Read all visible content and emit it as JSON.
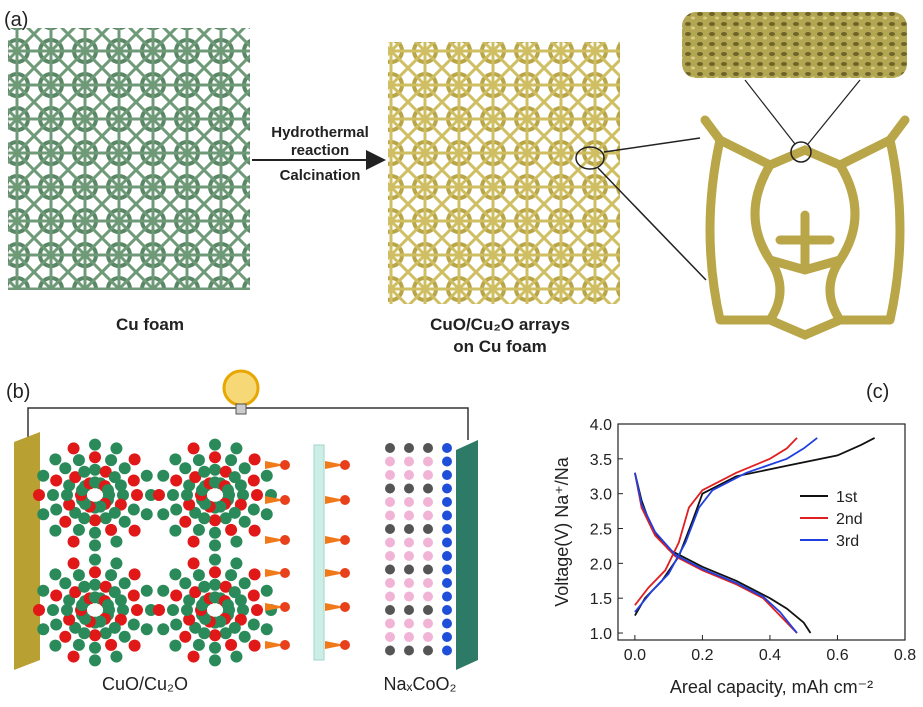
{
  "panel_a": {
    "label": "(a)",
    "arrow_text": [
      "Hydrothermal",
      "reaction",
      "Calcination"
    ],
    "left_caption": "Cu foam",
    "right_caption": [
      "CuO/Cu₂O arrays",
      "on Cu foam"
    ]
  },
  "panel_b": {
    "label": "(b)",
    "anode_label": "CuO/Cu₂O",
    "cathode_label": "NaₓCoO₂"
  },
  "panel_c": {
    "label": "(c)"
  },
  "chart_data": {
    "type": "line",
    "xlabel": "Areal capacity, mAh cm⁻²",
    "ylabel": "Voltage(V)  Na⁺/Na",
    "xlim": [
      -0.05,
      0.8
    ],
    "ylim": [
      0.9,
      4.0
    ],
    "xticks": [
      {
        "value": 0,
        "label": "0.0"
      },
      0.2,
      0.4,
      0.6,
      0.8
    ],
    "yticks": [
      {
        "value": 1,
        "label": "1.0"
      },
      1.5,
      {
        "value": 2,
        "label": "2.0"
      },
      2.5,
      {
        "value": 3,
        "label": "3.0"
      },
      3.5,
      {
        "value": 4,
        "label": "4.0"
      }
    ],
    "legend": "right",
    "series": [
      {
        "name": "1st",
        "color": "#111111",
        "x": [
          0,
          0.02,
          0.05,
          0.1,
          0.2,
          0.3,
          0.4,
          0.45,
          0.5,
          0.52,
          null,
          0,
          0.03,
          0.08,
          0.13,
          0.17,
          0.2,
          0.3,
          0.45,
          0.6,
          0.67,
          0.71
        ],
        "values": [
          3.3,
          2.9,
          2.5,
          2.2,
          1.95,
          1.75,
          1.5,
          1.35,
          1.15,
          1.0,
          null,
          1.25,
          1.5,
          1.75,
          2.1,
          2.6,
          3.0,
          3.25,
          3.4,
          3.55,
          3.7,
          3.8
        ]
      },
      {
        "name": "2nd",
        "color": "#e02020",
        "x": [
          0,
          0.02,
          0.06,
          0.12,
          0.2,
          0.3,
          0.38,
          0.42,
          0.46,
          0.48,
          null,
          0,
          0.04,
          0.09,
          0.13,
          0.16,
          0.2,
          0.3,
          0.4,
          0.45,
          0.48
        ],
        "values": [
          3.3,
          2.8,
          2.4,
          2.1,
          1.9,
          1.7,
          1.5,
          1.3,
          1.1,
          1.0,
          null,
          1.4,
          1.65,
          1.9,
          2.3,
          2.8,
          3.05,
          3.3,
          3.5,
          3.65,
          3.8
        ]
      },
      {
        "name": "3rd",
        "color": "#2040e0",
        "x": [
          0,
          0.02,
          0.06,
          0.12,
          0.2,
          0.3,
          0.38,
          0.43,
          0.46,
          0.48,
          null,
          0,
          0.05,
          0.1,
          0.15,
          0.19,
          0.23,
          0.33,
          0.45,
          0.5,
          0.54
        ],
        "values": [
          3.3,
          2.85,
          2.45,
          2.12,
          1.92,
          1.72,
          1.52,
          1.3,
          1.12,
          1.0,
          null,
          1.3,
          1.6,
          1.85,
          2.3,
          2.8,
          3.05,
          3.3,
          3.5,
          3.65,
          3.8
        ]
      }
    ]
  }
}
